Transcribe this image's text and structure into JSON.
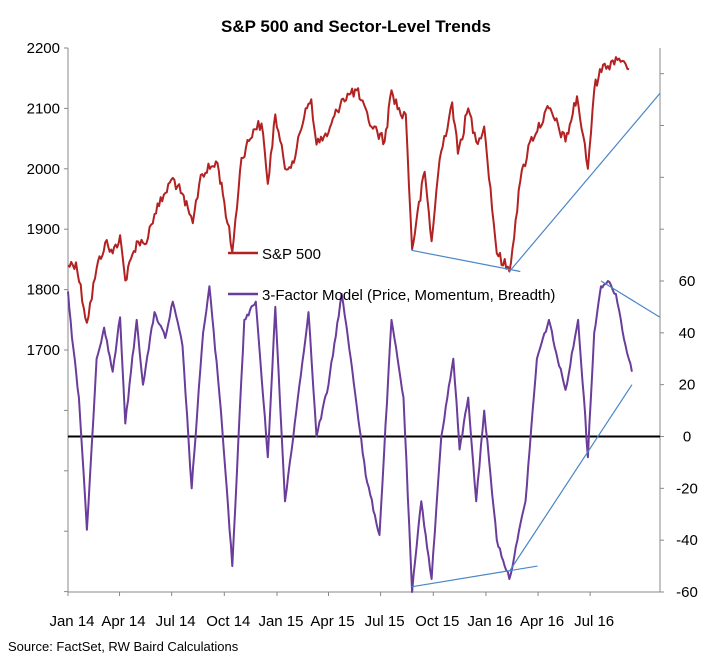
{
  "chart_data": {
    "type": "line",
    "title": "S&P 500 and Sector-Level Trends",
    "source": "Source: FactSet, RW Baird Calculations",
    "x_tick_labels": [
      "Jan 14",
      "Apr 14",
      "Jul 14",
      "Oct 14",
      "Jan 15",
      "Apr 15",
      "Jul 15",
      "Oct 15",
      "Jan 16",
      "Apr 16",
      "Jul 16"
    ],
    "x_range": [
      "2014-01-01",
      "2016-10-31"
    ],
    "left_axis": {
      "ylim": [
        1700,
        2200
      ],
      "ticks": [
        "1700",
        "1800",
        "1900",
        "2000",
        "2100",
        "2200"
      ]
    },
    "right_axis": {
      "ylim": [
        -60,
        60
      ],
      "ticks": [
        "-60",
        "-40",
        "-20",
        "0",
        "20",
        "40",
        "60"
      ]
    },
    "grid": false,
    "legend_position": "center",
    "series": [
      {
        "name": "S&P 500",
        "axis": "left",
        "color": "#b22222",
        "points": [
          [
            "2014-01-01",
            1840
          ],
          [
            "2014-01-15",
            1845
          ],
          [
            "2014-02-03",
            1745
          ],
          [
            "2014-02-20",
            1835
          ],
          [
            "2014-03-07",
            1878
          ],
          [
            "2014-03-20",
            1860
          ],
          [
            "2014-04-02",
            1890
          ],
          [
            "2014-04-11",
            1815
          ],
          [
            "2014-05-01",
            1880
          ],
          [
            "2014-05-15",
            1875
          ],
          [
            "2014-06-01",
            1925
          ],
          [
            "2014-06-20",
            1960
          ],
          [
            "2014-07-03",
            1985
          ],
          [
            "2014-07-17",
            1960
          ],
          [
            "2014-08-01",
            1925
          ],
          [
            "2014-08-07",
            1910
          ],
          [
            "2014-08-21",
            1990
          ],
          [
            "2014-09-19",
            2010
          ],
          [
            "2014-10-01",
            1945
          ],
          [
            "2014-10-15",
            1862
          ],
          [
            "2014-10-31",
            2018
          ],
          [
            "2014-11-21",
            2065
          ],
          [
            "2014-12-05",
            2075
          ],
          [
            "2014-12-16",
            1975
          ],
          [
            "2014-12-29",
            2090
          ],
          [
            "2015-01-15",
            2000
          ],
          [
            "2015-02-02",
            2020
          ],
          [
            "2015-02-20",
            2100
          ],
          [
            "2015-03-02",
            2115
          ],
          [
            "2015-03-11",
            2040
          ],
          [
            "2015-04-01",
            2060
          ],
          [
            "2015-04-24",
            2115
          ],
          [
            "2015-05-20",
            2130
          ],
          [
            "2015-06-10",
            2080
          ],
          [
            "2015-07-08",
            2045
          ],
          [
            "2015-07-20",
            2130
          ],
          [
            "2015-08-05",
            2090
          ],
          [
            "2015-08-14",
            2090
          ],
          [
            "2015-08-25",
            1867
          ],
          [
            "2015-09-01",
            1910
          ],
          [
            "2015-09-16",
            1995
          ],
          [
            "2015-09-28",
            1880
          ],
          [
            "2015-10-12",
            2015
          ],
          [
            "2015-11-03",
            2110
          ],
          [
            "2015-11-13",
            2025
          ],
          [
            "2015-12-01",
            2100
          ],
          [
            "2015-12-15",
            2045
          ],
          [
            "2015-12-29",
            2070
          ],
          [
            "2016-01-20",
            1860
          ],
          [
            "2016-02-11",
            1830
          ],
          [
            "2016-03-01",
            1980
          ],
          [
            "2016-03-18",
            2045
          ],
          [
            "2016-04-20",
            2100
          ],
          [
            "2016-05-19",
            2045
          ],
          [
            "2016-06-08",
            2120
          ],
          [
            "2016-06-27",
            2000
          ],
          [
            "2016-07-08",
            2130
          ],
          [
            "2016-07-18",
            2165
          ],
          [
            "2016-08-01",
            2170
          ],
          [
            "2016-08-15",
            2185
          ],
          [
            "2016-08-29",
            2178
          ],
          [
            "2016-09-07",
            2165
          ]
        ]
      },
      {
        "name": "3-Factor Model (Price, Momentum, Breadth)",
        "axis": "right",
        "color": "#6a3d9a",
        "points": [
          [
            "2014-01-01",
            56
          ],
          [
            "2014-01-08",
            38
          ],
          [
            "2014-01-20",
            15
          ],
          [
            "2014-02-03",
            -36
          ],
          [
            "2014-02-20",
            30
          ],
          [
            "2014-03-05",
            42
          ],
          [
            "2014-03-20",
            25
          ],
          [
            "2014-04-02",
            46
          ],
          [
            "2014-04-11",
            5
          ],
          [
            "2014-05-01",
            45
          ],
          [
            "2014-05-12",
            20
          ],
          [
            "2014-06-01",
            48
          ],
          [
            "2014-06-20",
            38
          ],
          [
            "2014-07-03",
            52
          ],
          [
            "2014-07-20",
            35
          ],
          [
            "2014-08-05",
            -20
          ],
          [
            "2014-08-25",
            40
          ],
          [
            "2014-09-05",
            58
          ],
          [
            "2014-09-25",
            10
          ],
          [
            "2014-10-15",
            -50
          ],
          [
            "2014-11-05",
            45
          ],
          [
            "2014-11-25",
            52
          ],
          [
            "2014-12-16",
            -8
          ],
          [
            "2014-12-29",
            50
          ],
          [
            "2015-01-15",
            -25
          ],
          [
            "2015-02-01",
            5
          ],
          [
            "2015-02-25",
            48
          ],
          [
            "2015-03-11",
            0
          ],
          [
            "2015-04-01",
            20
          ],
          [
            "2015-04-24",
            55
          ],
          [
            "2015-05-10",
            30
          ],
          [
            "2015-06-05",
            -15
          ],
          [
            "2015-06-29",
            -38
          ],
          [
            "2015-07-20",
            45
          ],
          [
            "2015-08-10",
            15
          ],
          [
            "2015-08-25",
            -60
          ],
          [
            "2015-09-10",
            -25
          ],
          [
            "2015-09-28",
            -55
          ],
          [
            "2015-10-15",
            0
          ],
          [
            "2015-11-05",
            30
          ],
          [
            "2015-11-16",
            -5
          ],
          [
            "2015-12-01",
            15
          ],
          [
            "2015-12-15",
            -25
          ],
          [
            "2015-12-29",
            10
          ],
          [
            "2016-01-20",
            -40
          ],
          [
            "2016-02-11",
            -55
          ],
          [
            "2016-02-25",
            -40
          ],
          [
            "2016-03-10",
            -25
          ],
          [
            "2016-03-30",
            30
          ],
          [
            "2016-04-20",
            45
          ],
          [
            "2016-05-05",
            30
          ],
          [
            "2016-05-19",
            18
          ],
          [
            "2016-06-10",
            45
          ],
          [
            "2016-06-20",
            15
          ],
          [
            "2016-06-27",
            -8
          ],
          [
            "2016-07-08",
            40
          ],
          [
            "2016-07-20",
            58
          ],
          [
            "2016-08-01",
            60
          ],
          [
            "2016-08-15",
            55
          ],
          [
            "2016-09-01",
            35
          ],
          [
            "2016-09-12",
            25
          ]
        ]
      }
    ],
    "annotations": [
      {
        "type": "trendline",
        "axis": "left",
        "color": "#4a86c8",
        "from": [
          "2015-08-24",
          1865
        ],
        "to": [
          "2016-03-01",
          1830
        ]
      },
      {
        "type": "trendline",
        "axis": "left",
        "color": "#4a86c8",
        "from": [
          "2016-02-11",
          1830
        ],
        "to": [
          "2016-10-31",
          2125
        ]
      },
      {
        "type": "trendline",
        "axis": "right",
        "color": "#4a86c8",
        "from": [
          "2015-08-24",
          -58
        ],
        "to": [
          "2016-03-31",
          -50
        ]
      },
      {
        "type": "trendline",
        "axis": "right",
        "color": "#4a86c8",
        "from": [
          "2016-02-11",
          -52
        ],
        "to": [
          "2016-09-12",
          20
        ]
      },
      {
        "type": "trendline",
        "axis": "right",
        "color": "#4a86c8",
        "from": [
          "2016-07-20",
          60
        ],
        "to": [
          "2016-10-31",
          46
        ]
      },
      {
        "type": "hline",
        "axis": "right",
        "color": "#000000",
        "value": 0
      }
    ]
  }
}
